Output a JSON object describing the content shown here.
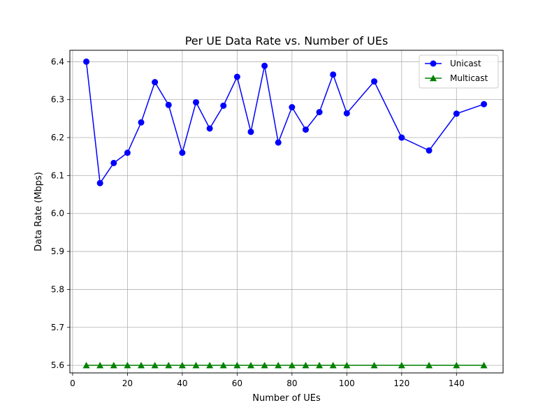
{
  "chart_data": {
    "type": "line",
    "title": "Per UE Data Rate vs. Number of UEs",
    "xlabel": "Number of UEs",
    "ylabel": "Data Rate (Mbps)",
    "xlim": [
      -1,
      157
    ],
    "ylim": [
      5.58,
      6.43
    ],
    "xticks": [
      0,
      20,
      40,
      60,
      80,
      100,
      120,
      140
    ],
    "yticks": [
      5.6,
      5.7,
      5.8,
      5.9,
      6.0,
      6.1,
      6.2,
      6.3,
      6.4
    ],
    "grid": true,
    "legend_position": "top-right",
    "x": [
      5,
      10,
      15,
      20,
      25,
      30,
      35,
      40,
      45,
      50,
      55,
      60,
      65,
      70,
      75,
      80,
      85,
      90,
      95,
      100,
      110,
      120,
      130,
      140,
      150
    ],
    "series": [
      {
        "name": "Unicast",
        "color": "#0000ff",
        "marker": "circle",
        "values": [
          6.4,
          6.08,
          6.133,
          6.16,
          6.24,
          6.346,
          6.286,
          6.16,
          6.293,
          6.224,
          6.284,
          6.36,
          6.215,
          6.389,
          6.187,
          6.28,
          6.221,
          6.267,
          6.366,
          6.264,
          6.348,
          6.2,
          6.166,
          6.263,
          6.288
        ]
      },
      {
        "name": "Multicast",
        "color": "#008000",
        "marker": "triangle",
        "values": [
          5.6,
          5.6,
          5.6,
          5.6,
          5.6,
          5.6,
          5.6,
          5.6,
          5.6,
          5.6,
          5.6,
          5.6,
          5.6,
          5.6,
          5.6,
          5.6,
          5.6,
          5.6,
          5.6,
          5.6,
          5.6,
          5.6,
          5.6,
          5.6,
          5.6
        ]
      }
    ]
  }
}
